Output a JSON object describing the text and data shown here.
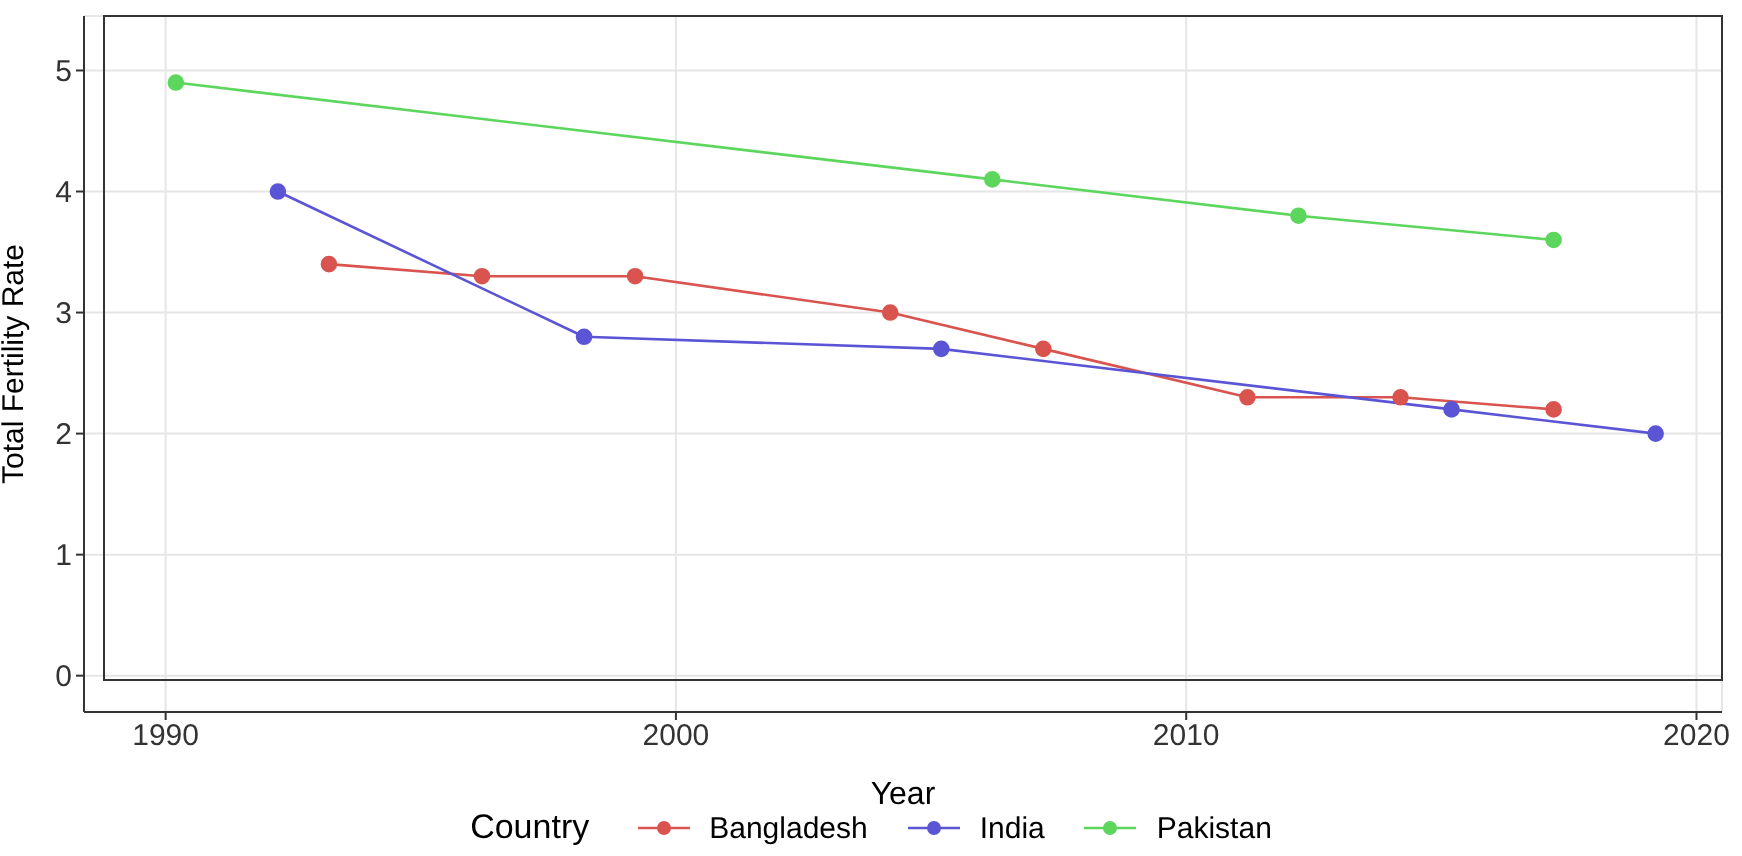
{
  "chart_data": {
    "type": "line",
    "xlabel": "Year",
    "ylabel": "Total Fertility Rate",
    "legend_title": "Country",
    "legend": "bottom",
    "grid": true,
    "marker": "circle",
    "line_style": "solid",
    "xlim": [
      1988.4,
      2020.5
    ],
    "xticks": [
      1990,
      2000,
      2010,
      2020
    ],
    "ylim": [
      -0.3,
      5.45
    ],
    "yticks": [
      0,
      1,
      2,
      3,
      4,
      5
    ],
    "series": [
      {
        "name": "Bangladesh",
        "color": "#d9534f",
        "x": [
          1993.2,
          1996.2,
          1999.2,
          2004.2,
          2007.2,
          2011.2,
          2014.2,
          2017.2
        ],
        "values": [
          3.4,
          3.3,
          3.3,
          3.0,
          2.7,
          2.3,
          2.3,
          2.2
        ]
      },
      {
        "name": "India",
        "color": "#5b55d6",
        "x": [
          1992.2,
          1998.2,
          2005.2,
          2015.2,
          2019.2
        ],
        "values": [
          4.0,
          2.8,
          2.7,
          2.2,
          2.0
        ]
      },
      {
        "name": "Pakistan",
        "color": "#5cd65c",
        "x": [
          1990.2,
          2006.2,
          2012.2,
          2017.2
        ],
        "values": [
          4.9,
          4.1,
          3.8,
          3.6
        ]
      }
    ]
  }
}
